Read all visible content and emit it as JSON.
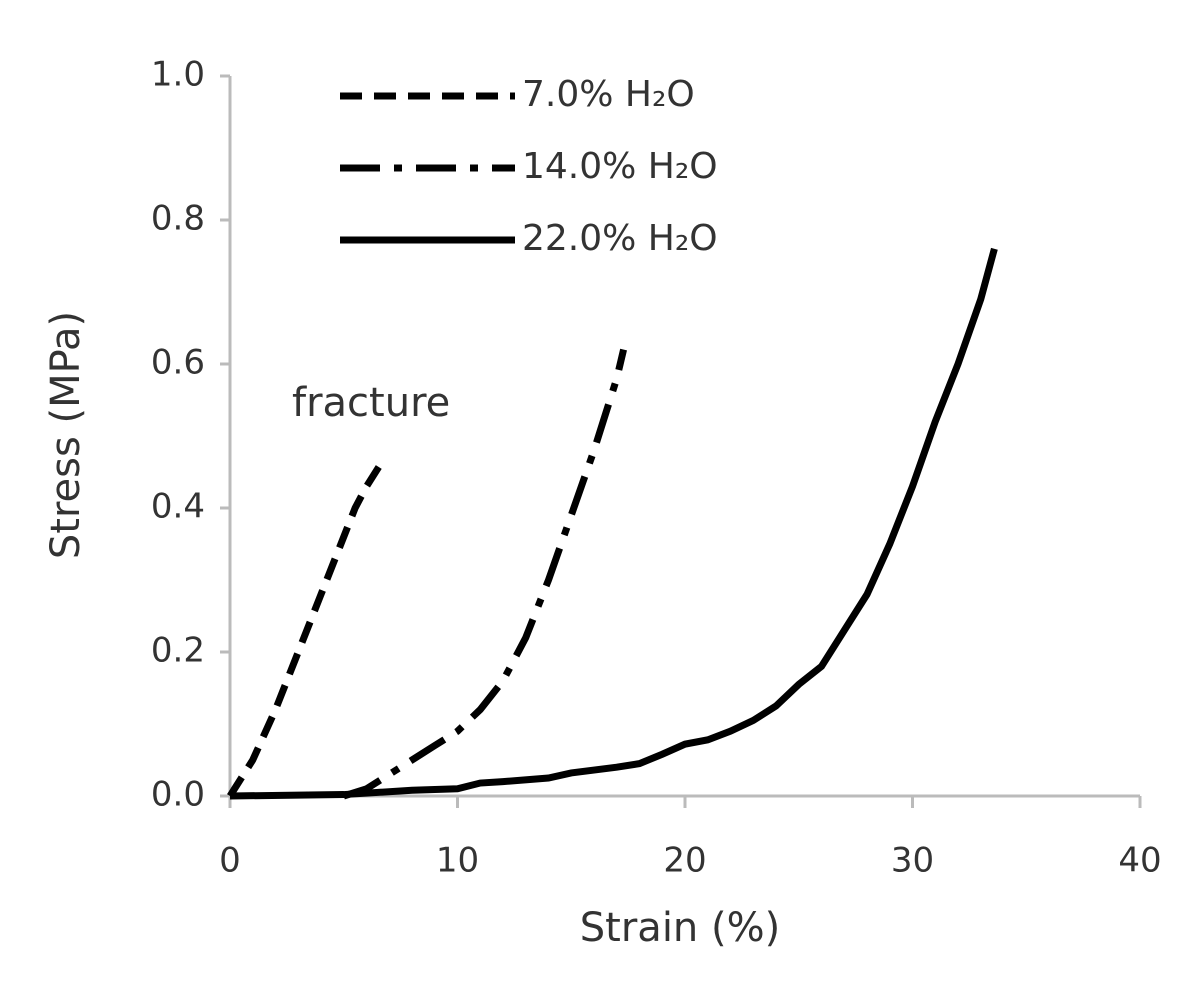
{
  "chart_data": {
    "type": "line",
    "xlabel": "Strain (%)",
    "ylabel": "Stress (MPa)",
    "annotation": "fracture",
    "xlim": [
      0,
      40
    ],
    "xticks": [
      0,
      10,
      20,
      30,
      40
    ],
    "ylim": [
      0,
      1.0
    ],
    "yticks": [
      {
        "value": 0,
        "label": "0.0"
      },
      0.2,
      0.4,
      0.6,
      0.8,
      {
        "value": 1.0,
        "label": "1.0"
      }
    ],
    "legend": "top-left",
    "series": [
      {
        "name": "7.0% H₂O",
        "color": "#000000",
        "dash": "dashed",
        "x": [
          0,
          1,
          2,
          3,
          4,
          5,
          5.5,
          6,
          6.6
        ],
        "values": [
          0,
          0.05,
          0.12,
          0.2,
          0.28,
          0.36,
          0.4,
          0.43,
          0.46
        ]
      },
      {
        "name": "14.0% H₂O",
        "color": "#000000",
        "dash": "dashdot",
        "x": [
          5,
          6,
          7,
          8,
          9,
          10,
          11,
          12,
          13,
          14,
          15,
          16,
          16.5,
          17,
          17.3
        ],
        "values": [
          0,
          0.01,
          0.03,
          0.05,
          0.07,
          0.09,
          0.12,
          0.16,
          0.22,
          0.3,
          0.39,
          0.48,
          0.53,
          0.58,
          0.62
        ]
      },
      {
        "name": "22.0% H₂O",
        "color": "#000000",
        "dash": "solid",
        "x": [
          0,
          5,
          8,
          10,
          11,
          12,
          14,
          15,
          16,
          17,
          18,
          19,
          20,
          21,
          22,
          23,
          24,
          25,
          26,
          27,
          28,
          29,
          30,
          31,
          32,
          33,
          33.6
        ],
        "values": [
          0,
          0.002,
          0.008,
          0.01,
          0.018,
          0.02,
          0.025,
          0.032,
          0.036,
          0.04,
          0.045,
          0.058,
          0.072,
          0.078,
          0.09,
          0.105,
          0.125,
          0.155,
          0.18,
          0.23,
          0.28,
          0.35,
          0.43,
          0.52,
          0.6,
          0.69,
          0.76
        ]
      }
    ]
  }
}
